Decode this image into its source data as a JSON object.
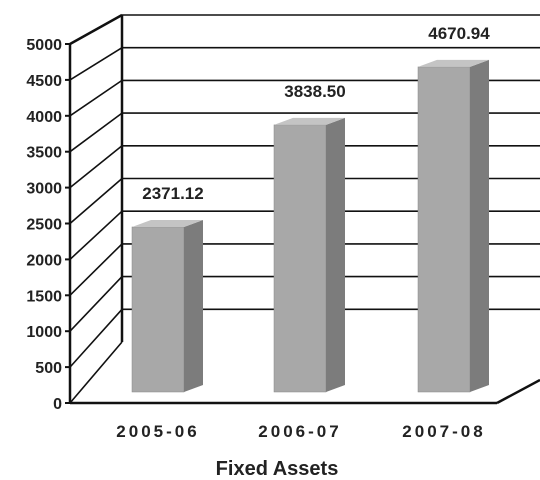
{
  "chart_data": {
    "type": "bar",
    "title": "Fixed Assets",
    "categories": [
      "2005-06",
      "2006-07",
      "2007-08"
    ],
    "values": [
      2371.12,
      3838.5,
      4670.94
    ],
    "data_labels": [
      "2371.12",
      "3838.50",
      "4670.94"
    ],
    "ylim": [
      0,
      5000
    ],
    "yticks": [
      "0",
      "500",
      "1000",
      "1500",
      "2000",
      "2500",
      "3000",
      "3500",
      "4000",
      "4500",
      "5000"
    ],
    "grid": true,
    "style": "3d",
    "colors": {
      "bar_front": "#a8a8a8",
      "bar_side": "#7c7c7c",
      "bar_top": "#c4c4c4",
      "axis": "#111111",
      "grid": "#111111"
    }
  }
}
